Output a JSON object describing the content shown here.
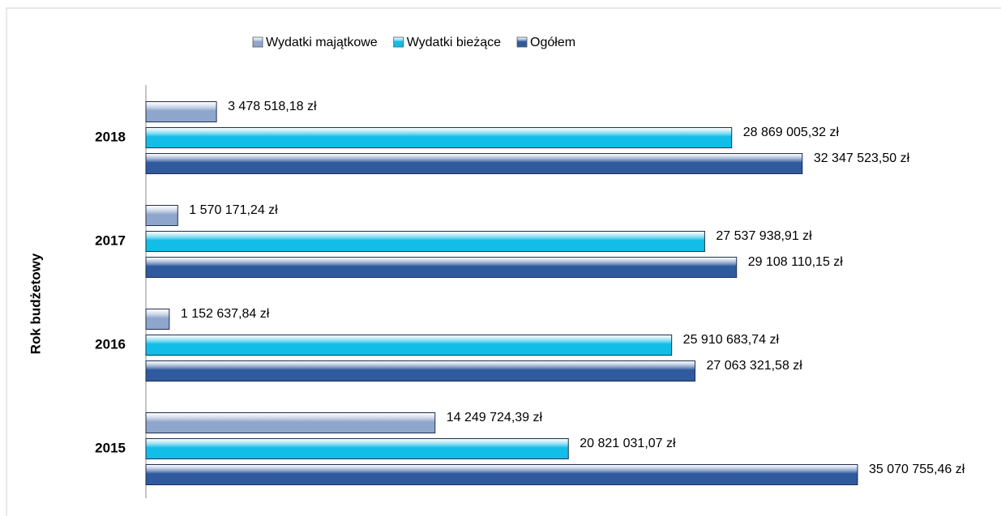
{
  "chart_data": {
    "type": "bar",
    "orientation": "horizontal",
    "y_label": "Rok budżetowy",
    "categories": [
      "2018",
      "2017",
      "2016",
      "2015"
    ],
    "series": [
      {
        "name": "Wydatki majątkowe",
        "color": "#8fa6cc",
        "values": [
          3478518.18,
          1570171.24,
          1152637.84,
          14249724.39
        ],
        "value_labels": [
          "3 478 518,18 zł",
          "1 570 171,24 zł",
          "1 152 637,84 zł",
          "14 249 724,39 zł"
        ]
      },
      {
        "name": "Wydatki bieżące",
        "color": "#12bde8",
        "values": [
          28869005.32,
          27537938.91,
          25910683.74,
          20821031.07
        ],
        "value_labels": [
          "28 869 005,32 zł",
          "27 537 938,91 zł",
          "25 910 683,74 zł",
          "20 821 031,07 zł"
        ]
      },
      {
        "name": "Ogółem",
        "color": "#2f5a9e",
        "values": [
          32347523.5,
          29108110.15,
          27063321.58,
          35070755.46
        ],
        "value_labels": [
          "32 347 523,50 zł",
          "29 108 110,15 zł",
          "27 063 321,58 zł",
          "35 070 755,46 zł"
        ]
      }
    ],
    "legend": "top"
  }
}
